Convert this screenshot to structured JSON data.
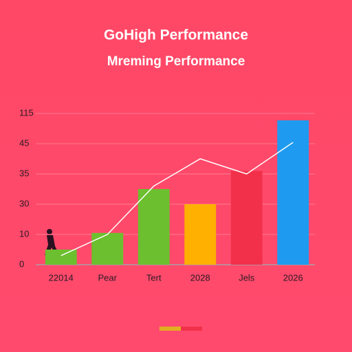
{
  "chart_data": {
    "type": "bar",
    "title": "GoHigh Performance",
    "subtitle": "Mreming Performance",
    "categories": [
      "22014",
      "Pear",
      "Tert",
      "2028",
      "Jels",
      "2026"
    ],
    "series": [
      {
        "type": "bar",
        "colors": [
          "#6cbf2e",
          "#6cbf2e",
          "#6cbf2e",
          "#ffb000",
          "#f2304a",
          "#1e9bf0"
        ],
        "values": [
          5,
          11,
          32.5,
          30,
          36,
          99
        ]
      },
      {
        "type": "line",
        "color": "#ffffff",
        "values": [
          3,
          10,
          33,
          40,
          35,
          48
        ]
      }
    ],
    "ylim": [
      0,
      115
    ],
    "yticks": [
      0,
      10,
      30,
      35,
      45,
      115
    ],
    "grid": true
  }
}
